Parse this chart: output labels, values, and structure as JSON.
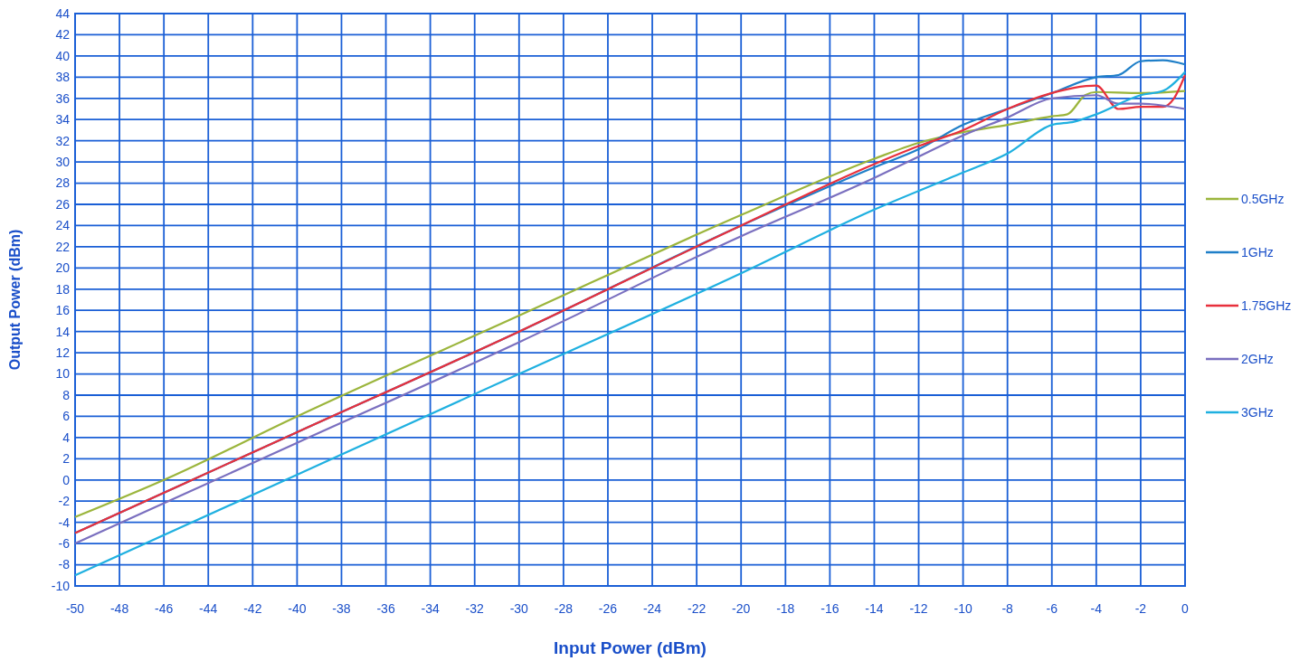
{
  "chart_data": {
    "type": "line",
    "xlabel": "Input Power  (dBm)",
    "ylabel": "Output Power  (dBm)",
    "xlim": [
      -50,
      0
    ],
    "xticks": [
      -50,
      -48,
      -46,
      -44,
      -42,
      -40,
      -38,
      -36,
      -34,
      -32,
      -30,
      -28,
      -26,
      -24,
      -22,
      -20,
      -18,
      -16,
      -14,
      -12,
      -10,
      -8,
      -6,
      -4,
      -2,
      0
    ],
    "ylim": [
      -10,
      44
    ],
    "yticks": [
      -10,
      -8,
      -6,
      -4,
      -2,
      0,
      2,
      4,
      6,
      8,
      10,
      12,
      14,
      16,
      18,
      20,
      22,
      24,
      26,
      28,
      30,
      32,
      34,
      36,
      38,
      40,
      42,
      44
    ],
    "grid": true,
    "legend": "right",
    "marker": "none",
    "line_style": "solid",
    "series": [
      {
        "name": "0.5GHz",
        "color": "#9bb53c",
        "x": [
          -50,
          -46,
          -40,
          -30,
          -20,
          -14,
          -12,
          -10,
          -8,
          -6,
          -5.3,
          -4.5,
          -4,
          -2,
          0
        ],
        "values": [
          -3.5,
          0,
          6,
          15.5,
          25,
          30.3,
          31.8,
          32.8,
          33.5,
          34.3,
          34.5,
          36.3,
          36.6,
          36.5,
          36.7
        ]
      },
      {
        "name": "1GHz",
        "color": "#1f7fc8",
        "x": [
          -50,
          -40,
          -30,
          -20,
          -14,
          -12,
          -10,
          -8,
          -6,
          -4,
          -3,
          -2,
          -1,
          0
        ],
        "values": [
          -5,
          4.5,
          14,
          24,
          29.5,
          31.2,
          33.5,
          35,
          36.5,
          38,
          38.2,
          39.5,
          39.6,
          39.2
        ]
      },
      {
        "name": "1.75GHz",
        "color": "#e8303c",
        "x": [
          -50,
          -40,
          -30,
          -20,
          -14,
          -12,
          -10,
          -8,
          -6,
          -5,
          -4,
          -3,
          -2,
          -1,
          -0.5,
          0
        ],
        "values": [
          -5,
          4.5,
          14,
          24,
          29.8,
          31.5,
          33,
          35,
          36.5,
          37,
          37.2,
          35,
          35.2,
          35.2,
          36,
          38.2
        ]
      },
      {
        "name": "2GHz",
        "color": "#7a6fbf",
        "x": [
          -50,
          -40,
          -30,
          -20,
          -14,
          -12,
          -10,
          -8,
          -6,
          -4,
          -3,
          -2,
          0
        ],
        "values": [
          -6,
          3.5,
          13,
          23,
          28.5,
          30.5,
          32.5,
          34.2,
          36,
          36.3,
          35.5,
          35.5,
          35
        ]
      },
      {
        "name": "3GHz",
        "color": "#1fb0e0",
        "x": [
          -50,
          -40,
          -30,
          -20,
          -14,
          -10,
          -8,
          -6,
          -5,
          -4,
          -2,
          -1,
          0
        ],
        "values": [
          -9,
          0.5,
          10,
          19.5,
          25.5,
          29,
          30.8,
          33.5,
          33.8,
          34.5,
          36.3,
          36.7,
          38.5
        ]
      }
    ]
  }
}
